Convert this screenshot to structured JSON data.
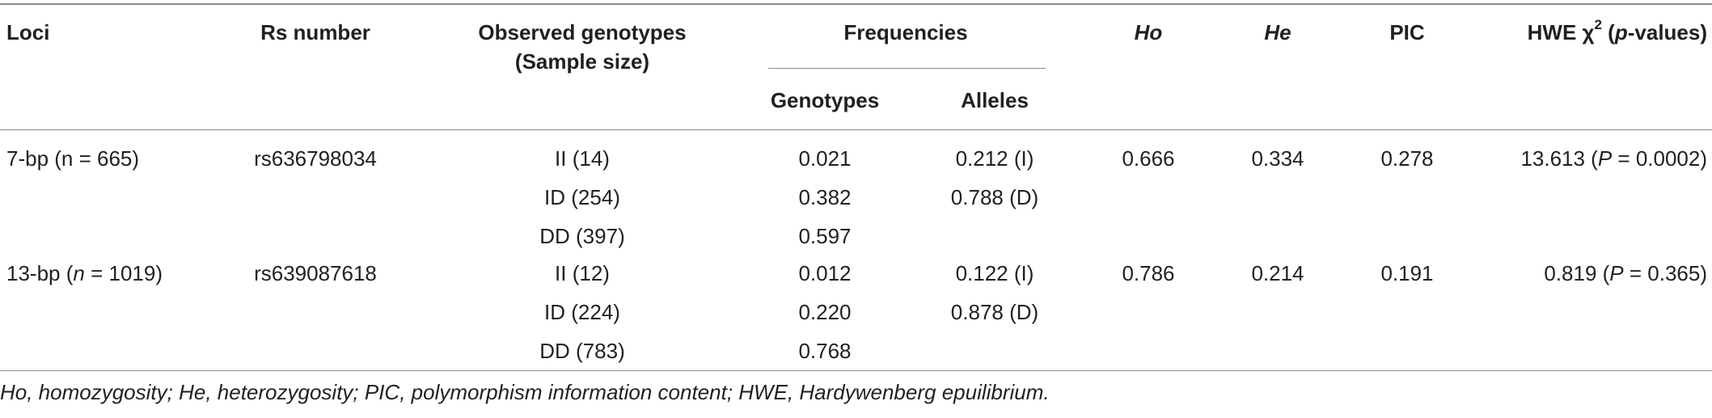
{
  "header": {
    "loci": "Loci",
    "rs_number": "Rs number",
    "observed_line1": "Observed genotypes",
    "observed_line2": "(Sample size)",
    "frequencies": "Frequencies",
    "genotypes": "Genotypes",
    "alleles": "Alleles",
    "ho": "Ho",
    "he": "He",
    "pic": "PIC",
    "hwe_prefix": "HWE χ",
    "hwe_sup": "2",
    "hwe_open": " (",
    "hwe_p": "p",
    "hwe_suffix": "-values)"
  },
  "rows": [
    {
      "loci_a": "7-bp (n = 665)",
      "loci_n": "",
      "loci_b": "",
      "rs": "rs636798034",
      "geno": [
        "II (14)",
        "ID (254)",
        "DD (397)"
      ],
      "freq": [
        "0.021",
        "0.382",
        "0.597"
      ],
      "alleles": [
        "0.212 (I)",
        "0.788 (D)"
      ],
      "ho": "0.666",
      "he": "0.334",
      "pic": "0.278",
      "hwe_a": "13.613 (",
      "hwe_p": "P",
      "hwe_b": " = 0.0002)"
    },
    {
      "loci_a": "13-bp (",
      "loci_n": "n",
      "loci_b": " = 1019)",
      "rs": "rs639087618",
      "geno": [
        "II (12)",
        "ID (224)",
        "DD (783)"
      ],
      "freq": [
        "0.012",
        "0.220",
        "0.768"
      ],
      "alleles": [
        "0.122 (I)",
        "0.878 (D)"
      ],
      "ho": "0.786",
      "he": "0.214",
      "pic": "0.191",
      "hwe_a": "0.819 (",
      "hwe_p": "P",
      "hwe_b": " = 0.365)"
    }
  ],
  "footnote": "Ho, homozygosity; He, heterozygosity; PIC, polymorphism information content; HWE, Hardywenberg epuilibrium."
}
